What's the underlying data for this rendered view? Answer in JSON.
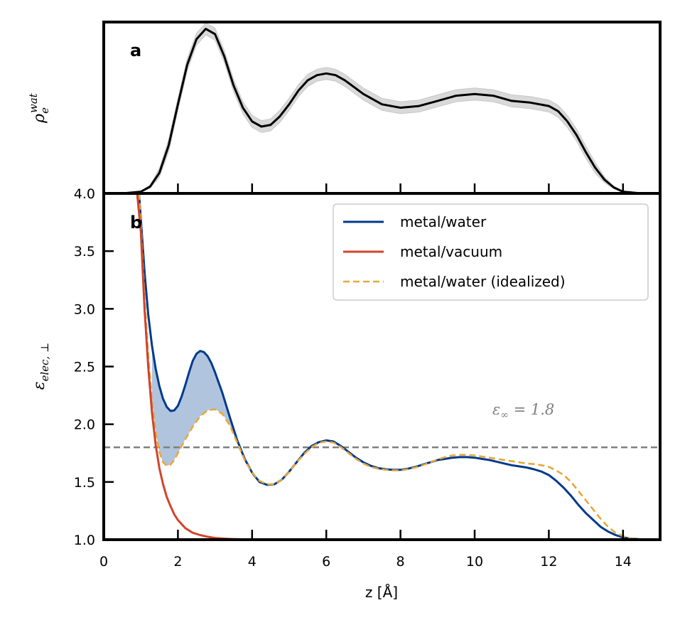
{
  "chart_data": [
    {
      "panel": "a",
      "type": "line",
      "xlabel": "",
      "ylabel": "ρ_e^wat",
      "ylabel_main": "ρ",
      "ylabel_sub": "e",
      "ylabel_sup": "wat",
      "xlim": [
        0,
        15
      ],
      "ylim": [
        0,
        1.0
      ],
      "y_ticks_labeled": false,
      "series": [
        {
          "color": "#000000",
          "band_color": "#d9d9d9",
          "band_halfwidth": 0.035,
          "x": [
            0,
            0.5,
            1.0,
            1.25,
            1.5,
            1.75,
            2.0,
            2.25,
            2.5,
            2.75,
            3.0,
            3.25,
            3.5,
            3.75,
            4.0,
            4.25,
            4.5,
            4.75,
            5.0,
            5.25,
            5.5,
            5.75,
            6.0,
            6.25,
            6.5,
            6.75,
            7.0,
            7.5,
            8.0,
            8.5,
            9.0,
            9.5,
            10.0,
            10.5,
            11.0,
            11.5,
            12.0,
            12.25,
            12.5,
            12.75,
            13.0,
            13.25,
            13.5,
            13.75,
            14.0,
            14.5,
            15.0
          ],
          "y": [
            0.0,
            0.0,
            0.01,
            0.04,
            0.12,
            0.28,
            0.52,
            0.75,
            0.9,
            0.96,
            0.93,
            0.8,
            0.63,
            0.5,
            0.42,
            0.39,
            0.4,
            0.45,
            0.52,
            0.6,
            0.66,
            0.69,
            0.7,
            0.69,
            0.66,
            0.62,
            0.58,
            0.52,
            0.5,
            0.51,
            0.54,
            0.57,
            0.58,
            0.57,
            0.54,
            0.53,
            0.51,
            0.48,
            0.42,
            0.34,
            0.24,
            0.15,
            0.08,
            0.035,
            0.01,
            0.0,
            0.0
          ]
        }
      ]
    },
    {
      "panel": "b",
      "type": "line",
      "xlabel": "z [Å]",
      "ylabel": "ε_elec, ⊥",
      "ylabel_main": "ε",
      "ylabel_sub": "elec, ⊥",
      "xlim": [
        0,
        15
      ],
      "ylim": [
        1.0,
        4.0
      ],
      "x_ticks": [
        0,
        2,
        4,
        6,
        8,
        10,
        12,
        14
      ],
      "x_tick_labels": [
        "0",
        "2",
        "4",
        "6",
        "8",
        "10",
        "12",
        "14"
      ],
      "y_ticks": [
        1.0,
        1.5,
        2.0,
        2.5,
        3.0,
        3.5,
        4.0
      ],
      "y_tick_labels": [
        "1.0",
        "1.5",
        "2.0",
        "2.5",
        "3.0",
        "3.5",
        "4.0"
      ],
      "hline": {
        "y": 1.8,
        "color": "#7f7f7f",
        "label_main": "ε",
        "label_sub": "∞",
        "label_rest": " = 1.8"
      },
      "fill_between": {
        "upper": "metal/water",
        "lower": "metal/water (idealized)",
        "color": "#b0c4de",
        "x_range": [
          1.3,
          3.75
        ]
      },
      "legend_position": "upper right",
      "series": [
        {
          "name": "metal/water",
          "color": "#003a8c",
          "dash": false,
          "x": [
            0.95,
            1.0,
            1.1,
            1.2,
            1.3,
            1.4,
            1.5,
            1.6,
            1.7,
            1.8,
            1.9,
            2.0,
            2.1,
            2.2,
            2.3,
            2.4,
            2.5,
            2.6,
            2.7,
            2.8,
            2.9,
            3.0,
            3.2,
            3.4,
            3.6,
            3.8,
            4.0,
            4.2,
            4.4,
            4.6,
            4.8,
            5.0,
            5.2,
            5.4,
            5.6,
            5.8,
            6.0,
            6.2,
            6.4,
            6.6,
            6.8,
            7.0,
            7.2,
            7.4,
            7.6,
            7.8,
            8.0,
            8.2,
            8.4,
            8.6,
            8.8,
            9.0,
            9.2,
            9.4,
            9.6,
            9.8,
            10.0,
            10.2,
            10.4,
            10.6,
            10.8,
            11.0,
            11.2,
            11.4,
            11.6,
            11.8,
            12.0,
            12.2,
            12.4,
            12.6,
            12.8,
            13.0,
            13.2,
            13.4,
            13.6,
            13.8,
            14.0,
            14.2,
            14.4,
            14.6,
            15.0
          ],
          "y": [
            4.0,
            3.78,
            3.32,
            2.95,
            2.68,
            2.48,
            2.33,
            2.22,
            2.15,
            2.115,
            2.12,
            2.16,
            2.24,
            2.34,
            2.45,
            2.55,
            2.61,
            2.635,
            2.625,
            2.59,
            2.53,
            2.45,
            2.27,
            2.06,
            1.86,
            1.7,
            1.58,
            1.5,
            1.475,
            1.48,
            1.52,
            1.59,
            1.67,
            1.75,
            1.81,
            1.845,
            1.86,
            1.85,
            1.81,
            1.76,
            1.71,
            1.67,
            1.64,
            1.62,
            1.61,
            1.605,
            1.605,
            1.615,
            1.63,
            1.65,
            1.67,
            1.69,
            1.7,
            1.71,
            1.715,
            1.715,
            1.71,
            1.7,
            1.69,
            1.675,
            1.66,
            1.645,
            1.635,
            1.625,
            1.61,
            1.59,
            1.56,
            1.51,
            1.45,
            1.38,
            1.3,
            1.23,
            1.17,
            1.11,
            1.07,
            1.04,
            1.02,
            1.01,
            1.005,
            1.0,
            1.0
          ]
        },
        {
          "name": "metal/vacuum",
          "color": "#d1442c",
          "dash": false,
          "x": [
            0.72,
            0.8,
            0.9,
            1.0,
            1.1,
            1.2,
            1.3,
            1.4,
            1.5,
            1.6,
            1.7,
            1.8,
            1.9,
            2.0,
            2.2,
            2.4,
            2.6,
            2.8,
            3.0,
            3.2,
            3.4,
            3.6,
            3.8,
            4.0,
            4.5,
            5.0,
            6.0,
            8.0,
            10.0,
            12.0,
            14.0,
            15.0
          ],
          "y": [
            4.0,
            4.0,
            4.0,
            3.67,
            3.0,
            2.5,
            2.1,
            1.82,
            1.62,
            1.48,
            1.37,
            1.29,
            1.22,
            1.17,
            1.1,
            1.06,
            1.04,
            1.025,
            1.015,
            1.01,
            1.006,
            1.004,
            1.002,
            1.001,
            1.0,
            1.0,
            1.0,
            1.0,
            1.0,
            1.0,
            1.0,
            1.0
          ]
        },
        {
          "name": "metal/water (idealized)",
          "color": "#e8a838",
          "dash": true,
          "x": [
            0.95,
            1.0,
            1.1,
            1.2,
            1.3,
            1.4,
            1.5,
            1.6,
            1.7,
            1.8,
            1.9,
            2.0,
            2.2,
            2.4,
            2.6,
            2.8,
            3.0,
            3.2,
            3.4,
            3.6,
            3.8,
            4.0,
            4.2,
            4.4,
            4.6,
            4.8,
            5.0,
            5.2,
            5.4,
            5.6,
            5.8,
            6.0,
            6.2,
            6.4,
            6.6,
            6.8,
            7.0,
            7.2,
            7.4,
            7.6,
            7.8,
            8.0,
            8.2,
            8.4,
            8.6,
            8.8,
            9.0,
            9.2,
            9.4,
            9.6,
            9.8,
            10.0,
            10.2,
            10.4,
            10.6,
            10.8,
            11.0,
            11.2,
            11.4,
            11.6,
            11.8,
            12.0,
            12.2,
            12.4,
            12.6,
            12.8,
            13.0,
            13.2,
            13.4,
            13.6,
            13.8,
            14.0,
            14.2,
            14.4,
            14.6,
            15.0
          ],
          "y": [
            4.0,
            3.75,
            3.1,
            2.6,
            2.2,
            1.93,
            1.76,
            1.67,
            1.64,
            1.65,
            1.69,
            1.75,
            1.87,
            1.98,
            2.07,
            2.12,
            2.13,
            2.09,
            1.99,
            1.84,
            1.69,
            1.58,
            1.51,
            1.48,
            1.48,
            1.52,
            1.59,
            1.67,
            1.74,
            1.8,
            1.84,
            1.85,
            1.84,
            1.8,
            1.75,
            1.7,
            1.66,
            1.63,
            1.615,
            1.605,
            1.6,
            1.6,
            1.61,
            1.625,
            1.645,
            1.67,
            1.695,
            1.715,
            1.73,
            1.735,
            1.735,
            1.73,
            1.72,
            1.71,
            1.7,
            1.69,
            1.68,
            1.67,
            1.66,
            1.655,
            1.645,
            1.63,
            1.6,
            1.56,
            1.5,
            1.42,
            1.34,
            1.26,
            1.18,
            1.11,
            1.06,
            1.03,
            1.01,
            1.005,
            1.0,
            1.0
          ]
        }
      ]
    }
  ]
}
